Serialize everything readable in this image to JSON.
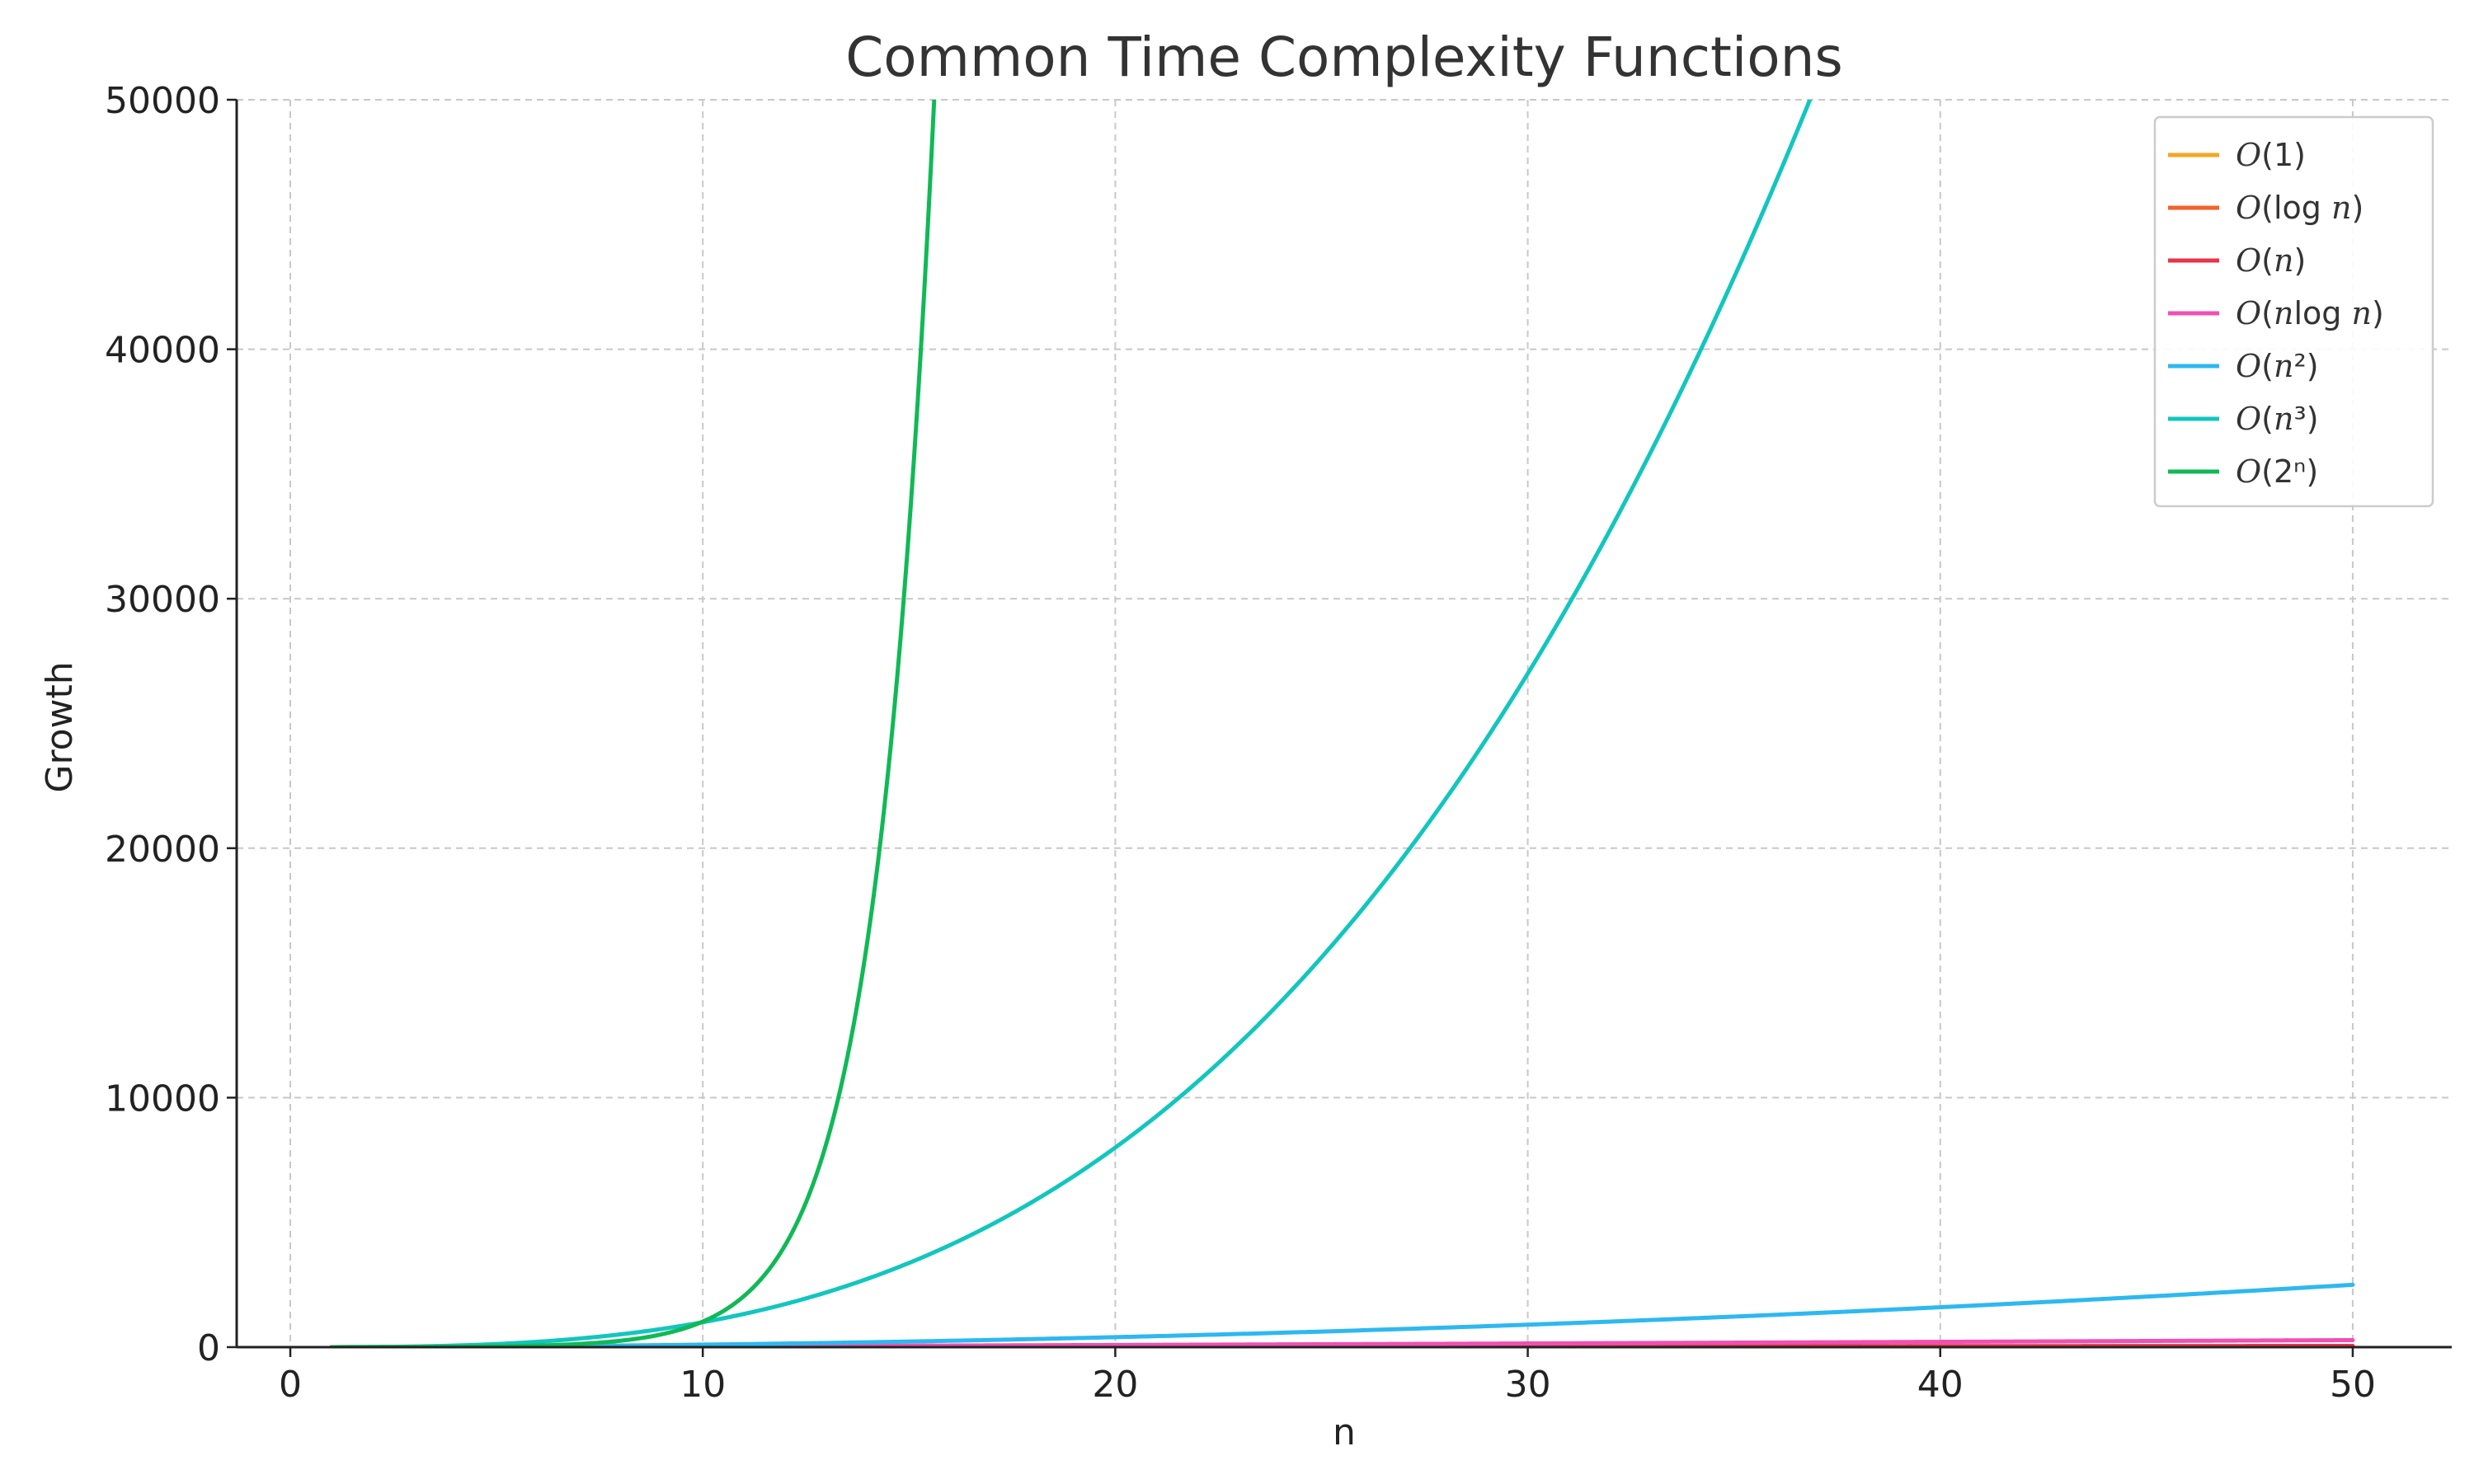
{
  "chart_data": {
    "type": "line",
    "title": "Common Time Complexity Functions",
    "xlabel": "n",
    "ylabel": "Growth",
    "xlim": [
      -1.3,
      52.4
    ],
    "ylim": [
      0,
      50000
    ],
    "x_ticks": [
      0,
      10,
      20,
      30,
      40,
      50
    ],
    "y_ticks": [
      0,
      10000,
      20000,
      30000,
      40000,
      50000
    ],
    "grid": true,
    "legend_position": "top-right",
    "x_range": [
      1,
      50
    ],
    "series": [
      {
        "name": "O(1)",
        "label_parts": [
          "O",
          "(1)"
        ],
        "color": "#f5a623",
        "formula": "1",
        "points": [
          [
            1,
            1
          ],
          [
            10,
            1
          ],
          [
            20,
            1
          ],
          [
            30,
            1
          ],
          [
            40,
            1
          ],
          [
            50,
            1
          ]
        ]
      },
      {
        "name": "O(log n)",
        "label_parts": [
          "O",
          "(log ",
          "n",
          ")"
        ],
        "color": "#f0622d",
        "formula": "log2(n)",
        "points": [
          [
            1,
            0
          ],
          [
            10,
            3.3
          ],
          [
            20,
            4.3
          ],
          [
            30,
            4.9
          ],
          [
            40,
            5.3
          ],
          [
            50,
            5.6
          ]
        ]
      },
      {
        "name": "O(n)",
        "label_parts": [
          "O",
          "(",
          "n",
          ")"
        ],
        "color": "#e8334a",
        "formula": "n",
        "points": [
          [
            1,
            1
          ],
          [
            10,
            10
          ],
          [
            20,
            20
          ],
          [
            30,
            30
          ],
          [
            40,
            40
          ],
          [
            50,
            50
          ]
        ]
      },
      {
        "name": "O(n log n)",
        "label_parts": [
          "O",
          "(",
          "n",
          "log ",
          "n",
          ")"
        ],
        "color": "#f050b4",
        "formula": "n*log2(n)",
        "points": [
          [
            1,
            0
          ],
          [
            10,
            33
          ],
          [
            20,
            86
          ],
          [
            30,
            147
          ],
          [
            40,
            213
          ],
          [
            50,
            282
          ]
        ]
      },
      {
        "name": "O(n²)",
        "label_parts": [
          "O",
          "(",
          "n",
          "²)"
        ],
        "color": "#2eb8f0",
        "formula": "n^2",
        "points": [
          [
            1,
            1
          ],
          [
            10,
            100
          ],
          [
            20,
            400
          ],
          [
            30,
            900
          ],
          [
            40,
            1600
          ],
          [
            50,
            2500
          ]
        ]
      },
      {
        "name": "O(n³)",
        "label_parts": [
          "O",
          "(",
          "n",
          "³)"
        ],
        "color": "#12c6be",
        "formula": "n^3",
        "points": [
          [
            1,
            1
          ],
          [
            10,
            1000
          ],
          [
            20,
            8000
          ],
          [
            30,
            27000
          ],
          [
            35,
            42875
          ],
          [
            36.8,
            50000
          ]
        ]
      },
      {
        "name": "O(2ⁿ)",
        "label_parts": [
          "O",
          "(2",
          "ⁿ",
          ")"
        ],
        "color": "#10b956",
        "formula": "2^n",
        "points": [
          [
            1,
            2
          ],
          [
            5,
            32
          ],
          [
            10,
            1024
          ],
          [
            12,
            4096
          ],
          [
            14,
            16384
          ],
          [
            15,
            32768
          ],
          [
            15.6,
            50000
          ]
        ]
      }
    ]
  }
}
